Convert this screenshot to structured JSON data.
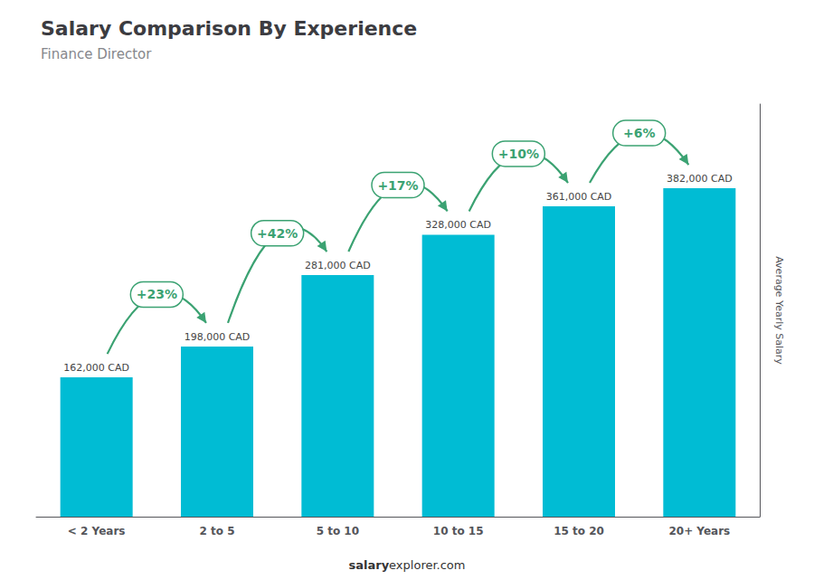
{
  "chart_data": {
    "type": "bar",
    "title": "Salary Comparison By Experience",
    "subtitle": "Finance Director",
    "categories": [
      "< 2 Years",
      "2 to 5",
      "5 to 10",
      "10 to 15",
      "15 to 20",
      "20+ Years"
    ],
    "values": [
      162000,
      198000,
      281000,
      328000,
      361000,
      382000
    ],
    "value_labels": [
      "162,000 CAD",
      "198,000 CAD",
      "281,000 CAD",
      "328,000 CAD",
      "361,000 CAD",
      "382,000 CAD"
    ],
    "data_labels": true,
    "color": "#00bcd4",
    "ylabel": "Average Yearly Salary",
    "ylim": [
      0,
      480000
    ],
    "tick_labels": "x",
    "grid": false,
    "annotations": [
      "+23%",
      "+42%",
      "+17%",
      "+10%",
      "+6%"
    ],
    "footer": [
      "salary",
      "explorer.com"
    ]
  }
}
